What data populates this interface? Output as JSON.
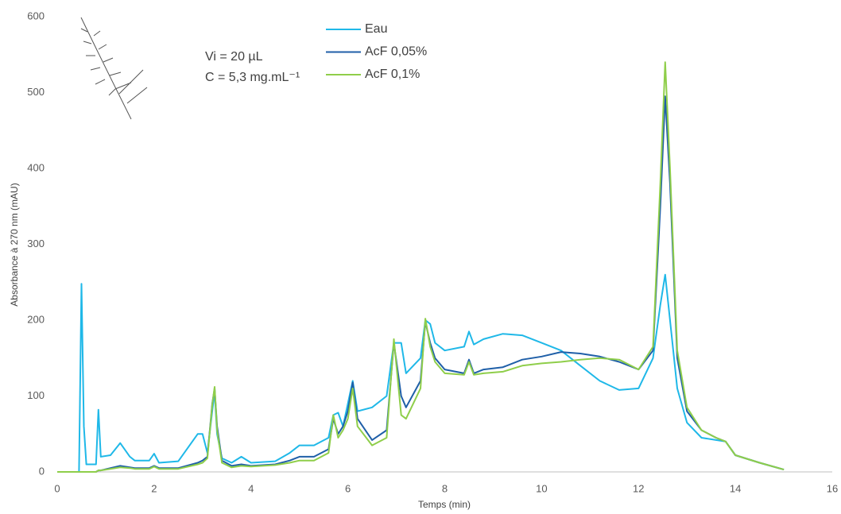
{
  "chart_data": {
    "type": "line",
    "xlabel": "Temps (min)",
    "ylabel": "Absorbance à 270 nm (mAU)",
    "annotations": [
      "Vi = 20 µL",
      "C = 5,3 mg.mL⁻¹"
    ],
    "legend_position": "upper-center",
    "xlim": [
      0,
      16
    ],
    "xticks": [
      0,
      2,
      4,
      6,
      8,
      10,
      12,
      14,
      16
    ],
    "ylim": [
      0,
      600
    ],
    "yticks": [
      0,
      100,
      200,
      300,
      400,
      500,
      600
    ],
    "x": [
      0,
      0.45,
      0.5,
      0.55,
      0.6,
      0.8,
      0.85,
      0.9,
      1.1,
      1.3,
      1.5,
      1.6,
      1.9,
      2.0,
      2.1,
      2.5,
      2.9,
      3.0,
      3.1,
      3.2,
      3.25,
      3.3,
      3.4,
      3.6,
      3.8,
      4.0,
      4.5,
      4.8,
      5.0,
      5.3,
      5.6,
      5.7,
      5.8,
      5.9,
      6.0,
      6.1,
      6.2,
      6.5,
      6.8,
      6.95,
      7.1,
      7.2,
      7.5,
      7.6,
      7.7,
      7.8,
      8.0,
      8.4,
      8.5,
      8.6,
      8.8,
      9.2,
      9.6,
      10.0,
      10.4,
      10.8,
      11.2,
      11.6,
      12.0,
      12.3,
      12.45,
      12.55,
      12.65,
      12.8,
      13.0,
      13.3,
      13.6,
      13.8,
      14.0,
      14.5,
      15.0
    ],
    "series": [
      {
        "name": "Eau",
        "color": "#1fb8e8",
        "values": [
          0,
          0,
          248,
          60,
          10,
          10,
          82,
          20,
          22,
          38,
          20,
          15,
          15,
          24,
          12,
          14,
          50,
          50,
          25,
          80,
          105,
          50,
          18,
          12,
          20,
          12,
          14,
          25,
          35,
          35,
          45,
          75,
          78,
          60,
          90,
          120,
          80,
          85,
          100,
          170,
          170,
          130,
          150,
          200,
          195,
          170,
          160,
          165,
          185,
          168,
          175,
          182,
          180,
          170,
          160,
          140,
          120,
          108,
          110,
          150,
          220,
          260,
          200,
          110,
          65,
          45,
          42,
          40,
          22,
          12,
          3
        ]
      },
      {
        "name": "AcF 0,05%",
        "color": "#1f5fa8",
        "values": [
          0,
          0,
          0,
          0,
          0,
          0,
          2,
          2,
          5,
          8,
          6,
          5,
          5,
          8,
          5,
          5,
          12,
          15,
          20,
          90,
          110,
          60,
          15,
          8,
          10,
          8,
          10,
          15,
          20,
          20,
          30,
          70,
          50,
          60,
          80,
          118,
          70,
          42,
          55,
          170,
          100,
          85,
          120,
          198,
          170,
          150,
          135,
          130,
          148,
          130,
          135,
          138,
          148,
          152,
          158,
          156,
          152,
          145,
          135,
          160,
          350,
          495,
          380,
          150,
          80,
          55,
          45,
          40,
          22,
          12,
          3
        ]
      },
      {
        "name": "AcF 0,1%",
        "color": "#8fce4a",
        "values": [
          0,
          0,
          0,
          0,
          0,
          0,
          2,
          2,
          4,
          6,
          5,
          4,
          4,
          7,
          4,
          4,
          10,
          12,
          18,
          88,
          112,
          55,
          12,
          6,
          8,
          7,
          9,
          12,
          15,
          15,
          25,
          75,
          45,
          55,
          70,
          110,
          60,
          35,
          45,
          175,
          75,
          70,
          110,
          202,
          165,
          145,
          130,
          128,
          145,
          128,
          130,
          132,
          140,
          143,
          145,
          148,
          150,
          148,
          135,
          165,
          380,
          540,
          400,
          160,
          85,
          55,
          45,
          40,
          22,
          12,
          3
        ]
      }
    ]
  }
}
